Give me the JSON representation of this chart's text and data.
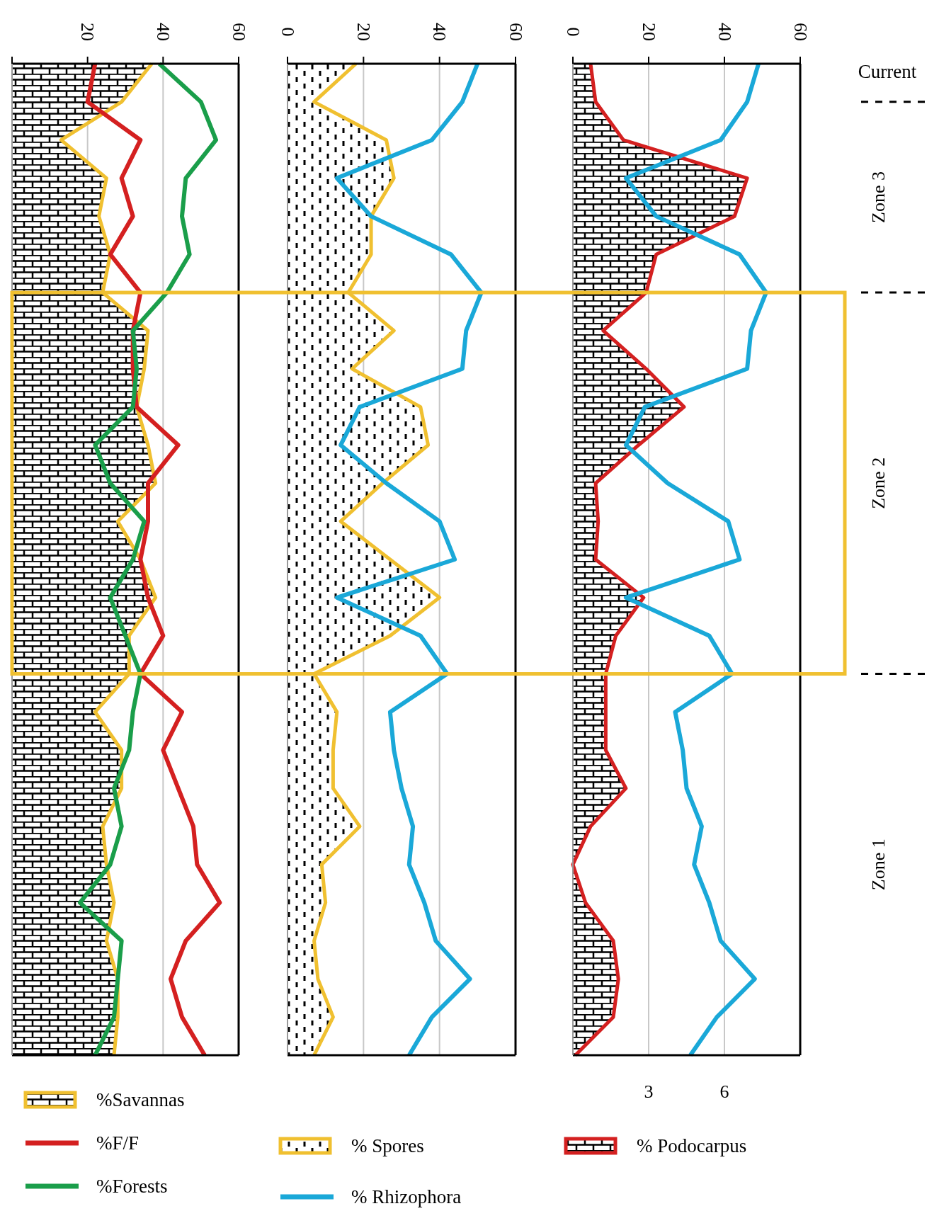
{
  "chart_data": [
    {
      "type": "line",
      "orientation": "horizontal",
      "categories": [
        null,
        null,
        null,
        null,
        null,
        null,
        null,
        null,
        null,
        null,
        null,
        null,
        null,
        null,
        null,
        null,
        null,
        null,
        null,
        null,
        null,
        null,
        null,
        null,
        null,
        null,
        null
      ],
      "xlim": [
        0,
        60
      ],
      "xticks": [
        {
          "value": 0,
          "label": null
        },
        20,
        40,
        60
      ],
      "grid": "x",
      "legend": "bottom",
      "series": [
        {
          "name": "%Savannas",
          "type": "area",
          "color": "#f0c030",
          "values": [
            37,
            29,
            13,
            25,
            23,
            26,
            24,
            36,
            35,
            33,
            36,
            38,
            28,
            34,
            38,
            31,
            31,
            22,
            29,
            29,
            24,
            25,
            27,
            25,
            28,
            28,
            27
          ]
        },
        {
          "name": "%F/F",
          "color": "#d42020",
          "values": [
            22,
            20,
            34,
            29,
            32,
            26,
            34,
            32,
            32,
            33,
            44,
            36,
            36,
            34,
            36,
            40,
            34,
            45,
            40,
            44,
            48,
            49,
            55,
            46,
            42,
            45,
            51
          ]
        },
        {
          "name": "%Forests",
          "color": "#1a9e4a",
          "values": [
            39,
            50,
            54,
            46,
            45,
            47,
            41,
            32,
            33,
            32,
            22,
            26,
            35,
            32,
            26,
            30,
            34,
            32,
            31,
            27,
            29,
            26,
            18,
            29,
            28,
            27,
            22
          ]
        }
      ]
    },
    {
      "type": "line",
      "orientation": "horizontal",
      "categories": [
        null,
        null,
        null,
        null,
        null,
        null,
        null,
        null,
        null,
        null,
        null,
        null,
        null,
        null,
        null,
        null,
        null,
        null,
        null,
        null,
        null,
        null,
        null,
        null,
        null,
        null,
        null
      ],
      "xlim": [
        0,
        60
      ],
      "xticks": [
        0,
        20,
        40,
        60
      ],
      "grid": "x",
      "legend": "bottom",
      "series": [
        {
          "name": "% Spores",
          "type": "area",
          "color": "#f0c030",
          "values": [
            18,
            7,
            26,
            28,
            22,
            22,
            16,
            28,
            17,
            35,
            37,
            25,
            14,
            27,
            40,
            27,
            7,
            13,
            12,
            12,
            19,
            9,
            10,
            7,
            8,
            12,
            7
          ]
        },
        {
          "name": "% Rhizophora",
          "color": "#1aa8d8",
          "values": [
            50,
            46,
            38,
            13,
            22,
            43,
            51,
            47,
            46,
            19,
            14,
            26,
            40,
            44,
            13,
            35,
            42,
            27,
            28,
            30,
            33,
            32,
            36,
            39,
            48,
            38,
            32
          ]
        }
      ]
    },
    {
      "type": "line",
      "orientation": "horizontal",
      "categories": [
        null,
        null,
        null,
        null,
        null,
        null,
        null,
        null,
        null,
        null,
        null,
        null,
        null,
        null,
        null,
        null,
        null,
        null,
        null,
        null,
        null,
        null,
        null,
        null,
        null,
        null,
        null
      ],
      "xlim": [
        0,
        60
      ],
      "xticks": [
        0,
        20,
        40,
        60
      ],
      "x2lim": [
        0,
        9
      ],
      "x2ticks": [
        3,
        6
      ],
      "grid": "x",
      "legend": "bottom",
      "series": [
        {
          "name": "% Podocarpus",
          "type": "area",
          "axis": "x2",
          "color": "#d42020",
          "values": [
            0.7,
            0.9,
            2.0,
            6.9,
            6.4,
            3.3,
            2.9,
            1.2,
            2.9,
            4.4,
            2.6,
            0.9,
            1.0,
            0.9,
            2.8,
            1.7,
            1.3,
            1.3,
            1.3,
            2.1,
            0.7,
            0,
            0.5,
            1.6,
            1.8,
            1.6,
            0.1
          ]
        },
        {
          "color": "#1aa8d8",
          "values": [
            49,
            46,
            39,
            14,
            22,
            44,
            51,
            47,
            46,
            19,
            14,
            25,
            41,
            44,
            14,
            36,
            42,
            27,
            29,
            30,
            34,
            32,
            36,
            39,
            48,
            38,
            31
          ]
        }
      ],
      "annotations": [
        "Current",
        "Zone 3",
        "Zone 2",
        "Zone 1"
      ]
    }
  ]
}
